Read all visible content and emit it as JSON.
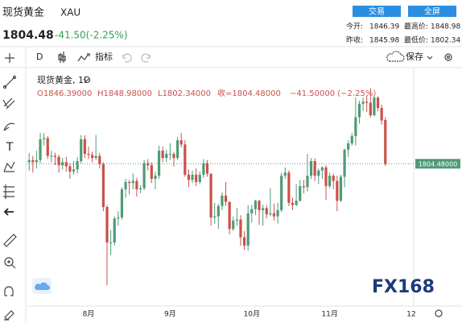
{
  "header": {
    "symbol_name": "现货黄金",
    "symbol_code": "XAU",
    "price": "1804.48",
    "change": "-41.50(-2.25%)",
    "buttons": [
      "交易",
      "全屏"
    ],
    "stats": [
      [
        "今开:",
        "1846.39"
      ],
      [
        "最高价:",
        "1848.98"
      ],
      [
        "昨收:",
        "1845.98"
      ],
      [
        "最低价:",
        "1802.34"
      ]
    ]
  },
  "toolbar": {
    "interval": "D",
    "indicators": "指标",
    "save": "保存"
  },
  "legend": {
    "title": "现货黄金, 1D",
    "open": "O1846.39000",
    "high": "H1848.98000",
    "low": "L1802.34000",
    "close": "收=1804.48000",
    "change": "−41.50000 (−2.25%)"
  },
  "watermark": "FX168",
  "chart_data": {
    "type": "candlestick",
    "up_color": "#4e9b76",
    "down_color": "#c9514b",
    "ylim": [
      1668,
      1892
    ],
    "last_price": {
      "value": 1804.48,
      "label": "1804.48000"
    },
    "categories": [
      null,
      null,
      null,
      null,
      null,
      null,
      null,
      null,
      null,
      null,
      null,
      null,
      null,
      null,
      null,
      null,
      "8月",
      null,
      null,
      null,
      null,
      null,
      null,
      null,
      null,
      null,
      null,
      null,
      null,
      null,
      null,
      null,
      null,
      null,
      null,
      null,
      null,
      null,
      "9月",
      null,
      null,
      null,
      null,
      null,
      null,
      null,
      null,
      null,
      null,
      null,
      null,
      null,
      null,
      null,
      null,
      null,
      null,
      null,
      null,
      null,
      "10月",
      null,
      null,
      null,
      null,
      null,
      null,
      null,
      null,
      null,
      null,
      null,
      null,
      null,
      null,
      null,
      null,
      null,
      null,
      null,
      null,
      "11月",
      null,
      null,
      null,
      null,
      null,
      null,
      null,
      null,
      null,
      null,
      null,
      null,
      null,
      null,
      null,
      null,
      null,
      null,
      null,
      null,
      null,
      "12"
    ],
    "open": [
      1806,
      1808,
      1806,
      1808,
      1828,
      1829,
      1812,
      1812,
      1811,
      1803,
      1806,
      1802,
      1797,
      1799,
      1807,
      1828,
      1814,
      1813,
      1810,
      1812,
      1804,
      1763,
      1729,
      1729,
      1752,
      1753,
      1780,
      1787,
      1786,
      1788,
      1780,
      1781,
      1805,
      1803,
      1790,
      1793,
      1817,
      1810,
      1814,
      1814,
      1810,
      1827,
      1823,
      1794,
      1789,
      1794,
      1787,
      1794,
      1805,
      1795,
      1753,
      1754,
      1764,
      1774,
      1768,
      1742,
      1750,
      1751,
      1734,
      1726,
      1757,
      1761,
      1769,
      1760,
      1762,
      1756,
      1757,
      1754,
      1760,
      1793,
      1796,
      1767,
      1765,
      1769,
      1783,
      1782,
      1793,
      1807,
      1793,
      1798,
      1801,
      1783,
      1793,
      1788,
      1769,
      1792,
      1818,
      1824,
      1831,
      1849,
      1862,
      1864,
      1863,
      1851,
      1868,
      1858,
      1846.39,
      null,
      null,
      null,
      null,
      null,
      null,
      null
    ],
    "high": [
      1815,
      1812,
      1817,
      1834,
      1834,
      1831,
      1817,
      1815,
      1813,
      1810,
      1811,
      1805,
      1807,
      1811,
      1832,
      1832,
      1821,
      1816,
      1832,
      1815,
      1806,
      1765,
      1741,
      1754,
      1759,
      1782,
      1790,
      1789,
      1795,
      1791,
      1784,
      1808,
      1809,
      1806,
      1797,
      1822,
      1821,
      1818,
      1824,
      1816,
      1830,
      1834,
      1827,
      1799,
      1798,
      1800,
      1797,
      1809,
      1808,
      1795,
      1767,
      1766,
      1777,
      1787,
      1768,
      1754,
      1762,
      1755,
      1740,
      1765,
      1765,
      1770,
      1770,
      1765,
      1765,
      1781,
      1766,
      1767,
      1796,
      1801,
      1798,
      1772,
      1785,
      1789,
      1789,
      1814,
      1810,
      1810,
      1800,
      1802,
      1803,
      1796,
      1795,
      1793,
      1794,
      1819,
      1827,
      1834,
      1868,
      1865,
      1868,
      1870,
      1877,
      1870,
      1869,
      1861,
      1848.98,
      null,
      null,
      null,
      null,
      null,
      null,
      null
    ],
    "low": [
      1798,
      1796,
      1800,
      1805,
      1822,
      1809,
      1806,
      1803,
      1796,
      1799,
      1797,
      1790,
      1794,
      1795,
      1805,
      1810,
      1809,
      1806,
      1808,
      1800,
      1759,
      1688,
      1717,
      1726,
      1745,
      1751,
      1772,
      1775,
      1780,
      1773,
      1776,
      1779,
      1798,
      1786,
      1780,
      1790,
      1806,
      1806,
      1808,
      1802,
      1808,
      1820,
      1792,
      1782,
      1786,
      1783,
      1785,
      1791,
      1792,
      1745,
      1747,
      1742,
      1760,
      1764,
      1737,
      1740,
      1745,
      1726,
      1722,
      1721,
      1748,
      1755,
      1746,
      1745,
      1752,
      1754,
      1750,
      1747,
      1758,
      1790,
      1764,
      1760,
      1764,
      1768,
      1776,
      1778,
      1790,
      1788,
      1785,
      1790,
      1770,
      1781,
      1780,
      1759,
      1768,
      1782,
      1811,
      1822,
      1822,
      1843,
      1855,
      1854,
      1849,
      1850,
      1855,
      1842,
      1802.34,
      null,
      null,
      null,
      null,
      null,
      null,
      null
    ],
    "close": [
      1808,
      1806,
      1808,
      1828,
      1829,
      1812,
      1812,
      1811,
      1803,
      1806,
      1802,
      1797,
      1799,
      1807,
      1828,
      1814,
      1813,
      1810,
      1812,
      1804,
      1763,
      1729,
      1729,
      1752,
      1753,
      1780,
      1787,
      1786,
      1788,
      1780,
      1781,
      1805,
      1803,
      1790,
      1793,
      1817,
      1810,
      1814,
      1814,
      1810,
      1827,
      1823,
      1794,
      1789,
      1794,
      1787,
      1794,
      1805,
      1795,
      1753,
      1754,
      1764,
      1774,
      1768,
      1742,
      1750,
      1751,
      1734,
      1726,
      1757,
      1761,
      1769,
      1760,
      1762,
      1756,
      1757,
      1754,
      1760,
      1793,
      1796,
      1767,
      1765,
      1769,
      1783,
      1782,
      1793,
      1807,
      1793,
      1798,
      1801,
      1783,
      1793,
      1788,
      1769,
      1792,
      1818,
      1824,
      1831,
      1849,
      1862,
      1864,
      1863,
      1851,
      1868,
      1858,
      1846,
      1804.48,
      null,
      null,
      null,
      null,
      null,
      null,
      null
    ]
  }
}
